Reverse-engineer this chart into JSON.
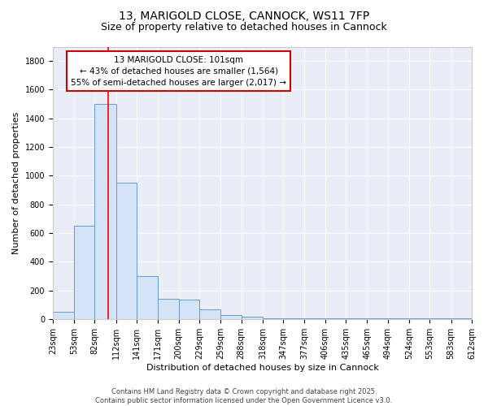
{
  "title1": "13, MARIGOLD CLOSE, CANNOCK, WS11 7FP",
  "title2": "Size of property relative to detached houses in Cannock",
  "xlabel": "Distribution of detached houses by size in Cannock",
  "ylabel": "Number of detached properties",
  "bar_color": "#d4e3f5",
  "bar_edge_color": "#6699cc",
  "bins": [
    23,
    53,
    82,
    112,
    141,
    171,
    200,
    229,
    259,
    288,
    318,
    347,
    377,
    406,
    435,
    465,
    494,
    524,
    553,
    583,
    612
  ],
  "bin_labels": [
    "23sqm",
    "53sqm",
    "82sqm",
    "112sqm",
    "141sqm",
    "171sqm",
    "200sqm",
    "229sqm",
    "259sqm",
    "288sqm",
    "318sqm",
    "347sqm",
    "377sqm",
    "406sqm",
    "435sqm",
    "465sqm",
    "494sqm",
    "524sqm",
    "553sqm",
    "583sqm",
    "612sqm"
  ],
  "values": [
    50,
    650,
    1500,
    950,
    300,
    140,
    135,
    65,
    25,
    15,
    5,
    5,
    5,
    3,
    2,
    2,
    2,
    2,
    2,
    2
  ],
  "red_line_x": 101,
  "annotation_text": "13 MARIGOLD CLOSE: 101sqm\n← 43% of detached houses are smaller (1,564)\n55% of semi-detached houses are larger (2,017) →",
  "annotation_box_color": "white",
  "annotation_box_edge_color": "#cc0000",
  "ylim": [
    0,
    1900
  ],
  "yticks": [
    0,
    200,
    400,
    600,
    800,
    1000,
    1200,
    1400,
    1600,
    1800
  ],
  "background_color": "#e8edf7",
  "grid_color": "white",
  "footer_text": "Contains HM Land Registry data © Crown copyright and database right 2025.\nContains public sector information licensed under the Open Government Licence v3.0.",
  "title_fontsize": 10,
  "subtitle_fontsize": 9,
  "annotation_fontsize": 7.5,
  "axis_label_fontsize": 8,
  "tick_fontsize": 7,
  "footer_fontsize": 6
}
